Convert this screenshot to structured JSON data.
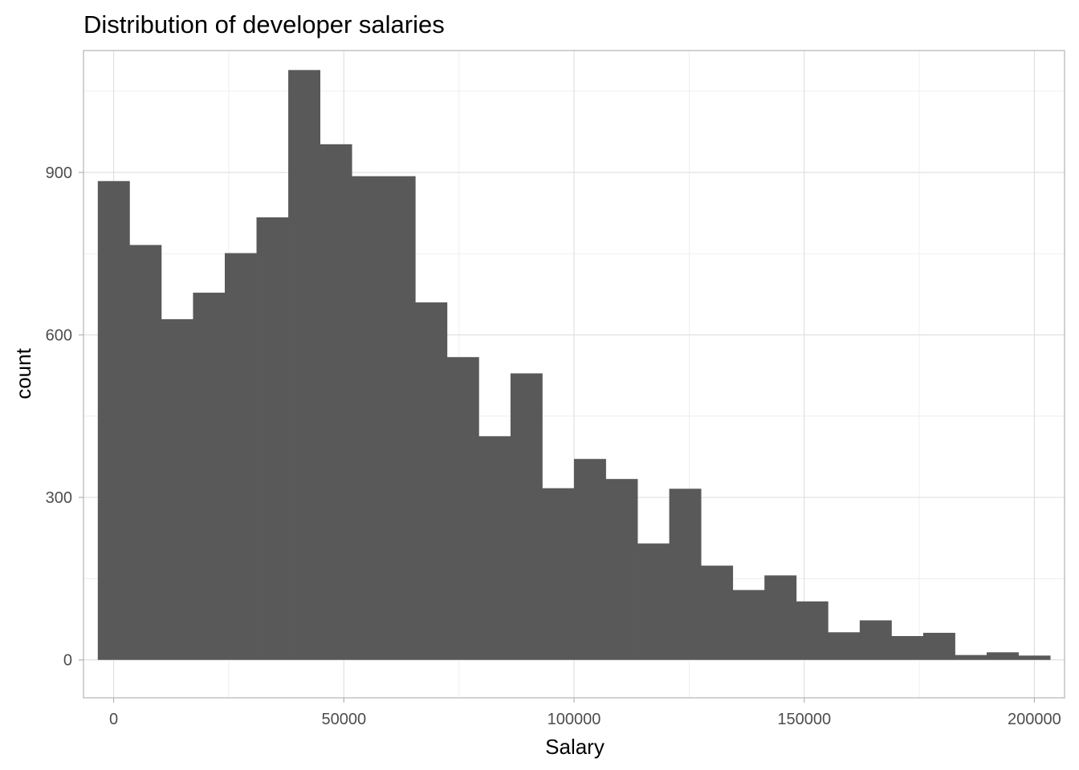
{
  "chart_data": {
    "type": "bar",
    "title": "Distribution of developer salaries",
    "xlabel": "Salary",
    "ylabel": "count",
    "bins": 30,
    "bin_start": -3448,
    "bin_width": 6896,
    "values": [
      884,
      766,
      629,
      678,
      751,
      817,
      1089,
      952,
      893,
      893,
      660,
      559,
      413,
      529,
      317,
      371,
      334,
      215,
      316,
      174,
      129,
      156,
      108,
      51,
      73,
      44,
      50,
      9,
      14,
      8
    ],
    "xlim": [
      -6552,
      206552
    ],
    "ylim": [
      -70,
      1125
    ],
    "x_ticks": [
      0,
      50000,
      100000,
      150000,
      200000
    ],
    "x_tick_labels": [
      "0",
      "50000",
      "100000",
      "150000",
      "200000"
    ],
    "y_ticks": [
      0,
      300,
      600,
      900
    ],
    "y_tick_labels": [
      "0",
      "300",
      "600",
      "900"
    ],
    "grid": true,
    "bar_color": "#595959"
  }
}
